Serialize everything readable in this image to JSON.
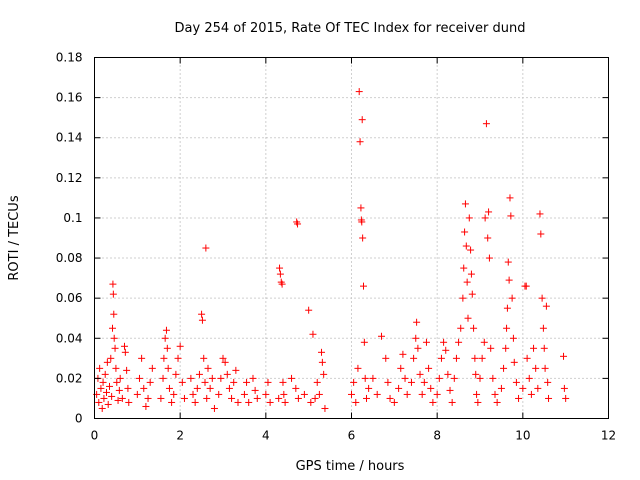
{
  "chart_data": {
    "type": "scatter",
    "title": "Day 254 of 2015, Rate Of TEC Index for receiver dund",
    "xlabel": "GPS time / hours",
    "ylabel": "ROTI / TECUs",
    "xlim": [
      0,
      12
    ],
    "ylim": [
      0,
      0.18
    ],
    "xticks": [
      0,
      2,
      4,
      6,
      8,
      10,
      12
    ],
    "xtick_labels": [
      "0",
      "2",
      "4",
      "6",
      "8",
      "10",
      "12"
    ],
    "yticks": [
      0,
      0.02,
      0.04,
      0.06,
      0.08,
      0.1,
      0.12,
      0.14,
      0.16,
      0.18
    ],
    "ytick_labels": [
      "0",
      "0.02",
      "0.04",
      "0.06",
      "0.08",
      "0.1",
      "0.12",
      "0.14",
      "0.16",
      "0.18"
    ],
    "grid": true,
    "marker": "+",
    "marker_color": "#ff0000",
    "series": [
      {
        "name": "ROTI",
        "points": [
          [
            0.05,
            0.012
          ],
          [
            0.08,
            0.02
          ],
          [
            0.1,
            0.008
          ],
          [
            0.12,
            0.025
          ],
          [
            0.15,
            0.015
          ],
          [
            0.18,
            0.005
          ],
          [
            0.2,
            0.018
          ],
          [
            0.22,
            0.01
          ],
          [
            0.25,
            0.022
          ],
          [
            0.28,
            0.013
          ],
          [
            0.3,
            0.028
          ],
          [
            0.32,
            0.007
          ],
          [
            0.35,
            0.016
          ],
          [
            0.38,
            0.03
          ],
          [
            0.4,
            0.011
          ],
          [
            0.42,
            0.045
          ],
          [
            0.43,
            0.067
          ],
          [
            0.44,
            0.062
          ],
          [
            0.45,
            0.052
          ],
          [
            0.46,
            0.04
          ],
          [
            0.48,
            0.035
          ],
          [
            0.5,
            0.025
          ],
          [
            0.52,
            0.018
          ],
          [
            0.55,
            0.009
          ],
          [
            0.58,
            0.014
          ],
          [
            0.6,
            0.02
          ],
          [
            0.65,
            0.01
          ],
          [
            0.7,
            0.036
          ],
          [
            0.72,
            0.033
          ],
          [
            0.75,
            0.024
          ],
          [
            0.78,
            0.015
          ],
          [
            0.8,
            0.008
          ],
          [
            1.0,
            0.012
          ],
          [
            1.05,
            0.02
          ],
          [
            1.1,
            0.03
          ],
          [
            1.15,
            0.015
          ],
          [
            1.2,
            0.006
          ],
          [
            1.25,
            0.01
          ],
          [
            1.3,
            0.018
          ],
          [
            1.35,
            0.025
          ],
          [
            1.55,
            0.01
          ],
          [
            1.6,
            0.02
          ],
          [
            1.62,
            0.03
          ],
          [
            1.65,
            0.04
          ],
          [
            1.68,
            0.044
          ],
          [
            1.7,
            0.035
          ],
          [
            1.72,
            0.025
          ],
          [
            1.75,
            0.015
          ],
          [
            1.8,
            0.008
          ],
          [
            1.85,
            0.012
          ],
          [
            1.9,
            0.022
          ],
          [
            1.95,
            0.03
          ],
          [
            2.0,
            0.036
          ],
          [
            2.05,
            0.018
          ],
          [
            2.1,
            0.01
          ],
          [
            2.25,
            0.02
          ],
          [
            2.3,
            0.012
          ],
          [
            2.35,
            0.008
          ],
          [
            2.4,
            0.015
          ],
          [
            2.45,
            0.022
          ],
          [
            2.5,
            0.052
          ],
          [
            2.52,
            0.049
          ],
          [
            2.55,
            0.03
          ],
          [
            2.58,
            0.018
          ],
          [
            2.6,
            0.085
          ],
          [
            2.62,
            0.01
          ],
          [
            2.65,
            0.025
          ],
          [
            2.7,
            0.015
          ],
          [
            2.75,
            0.02
          ],
          [
            2.8,
            0.005
          ],
          [
            2.9,
            0.012
          ],
          [
            2.95,
            0.02
          ],
          [
            3.0,
            0.03
          ],
          [
            3.05,
            0.028
          ],
          [
            3.1,
            0.022
          ],
          [
            3.15,
            0.015
          ],
          [
            3.2,
            0.01
          ],
          [
            3.25,
            0.018
          ],
          [
            3.3,
            0.024
          ],
          [
            3.35,
            0.008
          ],
          [
            3.5,
            0.012
          ],
          [
            3.55,
            0.018
          ],
          [
            3.6,
            0.008
          ],
          [
            3.7,
            0.02
          ],
          [
            3.75,
            0.014
          ],
          [
            3.8,
            0.01
          ],
          [
            4.0,
            0.012
          ],
          [
            4.05,
            0.018
          ],
          [
            4.1,
            0.008
          ],
          [
            4.3,
            0.01
          ],
          [
            4.32,
            0.075
          ],
          [
            4.34,
            0.072
          ],
          [
            4.36,
            0.068
          ],
          [
            4.38,
            0.067
          ],
          [
            4.4,
            0.018
          ],
          [
            4.42,
            0.012
          ],
          [
            4.45,
            0.008
          ],
          [
            4.6,
            0.02
          ],
          [
            4.7,
            0.015
          ],
          [
            4.72,
            0.098
          ],
          [
            4.74,
            0.097
          ],
          [
            4.76,
            0.01
          ],
          [
            4.9,
            0.012
          ],
          [
            5.0,
            0.054
          ],
          [
            5.05,
            0.008
          ],
          [
            5.1,
            0.042
          ],
          [
            5.15,
            0.01
          ],
          [
            5.2,
            0.018
          ],
          [
            5.25,
            0.012
          ],
          [
            5.3,
            0.033
          ],
          [
            5.32,
            0.028
          ],
          [
            5.35,
            0.022
          ],
          [
            5.38,
            0.005
          ],
          [
            6.0,
            0.012
          ],
          [
            6.05,
            0.018
          ],
          [
            6.1,
            0.008
          ],
          [
            6.15,
            0.025
          ],
          [
            6.18,
            0.163
          ],
          [
            6.2,
            0.138
          ],
          [
            6.22,
            0.105
          ],
          [
            6.23,
            0.099
          ],
          [
            6.24,
            0.098
          ],
          [
            6.25,
            0.149
          ],
          [
            6.26,
            0.09
          ],
          [
            6.28,
            0.066
          ],
          [
            6.3,
            0.038
          ],
          [
            6.32,
            0.02
          ],
          [
            6.35,
            0.01
          ],
          [
            6.4,
            0.015
          ],
          [
            6.5,
            0.02
          ],
          [
            6.6,
            0.012
          ],
          [
            6.7,
            0.041
          ],
          [
            6.8,
            0.03
          ],
          [
            6.85,
            0.018
          ],
          [
            6.9,
            0.01
          ],
          [
            7.0,
            0.008
          ],
          [
            7.1,
            0.015
          ],
          [
            7.15,
            0.025
          ],
          [
            7.2,
            0.032
          ],
          [
            7.25,
            0.02
          ],
          [
            7.3,
            0.012
          ],
          [
            7.4,
            0.018
          ],
          [
            7.45,
            0.03
          ],
          [
            7.5,
            0.04
          ],
          [
            7.52,
            0.048
          ],
          [
            7.55,
            0.035
          ],
          [
            7.6,
            0.022
          ],
          [
            7.65,
            0.012
          ],
          [
            7.7,
            0.018
          ],
          [
            7.75,
            0.038
          ],
          [
            7.8,
            0.025
          ],
          [
            7.85,
            0.015
          ],
          [
            7.9,
            0.008
          ],
          [
            8.0,
            0.012
          ],
          [
            8.05,
            0.02
          ],
          [
            8.1,
            0.03
          ],
          [
            8.15,
            0.038
          ],
          [
            8.2,
            0.034
          ],
          [
            8.25,
            0.022
          ],
          [
            8.3,
            0.014
          ],
          [
            8.35,
            0.008
          ],
          [
            8.4,
            0.02
          ],
          [
            8.45,
            0.03
          ],
          [
            8.5,
            0.038
          ],
          [
            8.55,
            0.045
          ],
          [
            8.6,
            0.06
          ],
          [
            8.62,
            0.075
          ],
          [
            8.64,
            0.093
          ],
          [
            8.66,
            0.107
          ],
          [
            8.68,
            0.086
          ],
          [
            8.7,
            0.068
          ],
          [
            8.72,
            0.05
          ],
          [
            8.75,
            0.1
          ],
          [
            8.78,
            0.084
          ],
          [
            8.8,
            0.072
          ],
          [
            8.82,
            0.062
          ],
          [
            8.85,
            0.045
          ],
          [
            8.88,
            0.03
          ],
          [
            8.9,
            0.022
          ],
          [
            8.92,
            0.012
          ],
          [
            8.95,
            0.008
          ],
          [
            9.0,
            0.02
          ],
          [
            9.05,
            0.03
          ],
          [
            9.1,
            0.038
          ],
          [
            9.12,
            0.1
          ],
          [
            9.15,
            0.147
          ],
          [
            9.18,
            0.09
          ],
          [
            9.2,
            0.103
          ],
          [
            9.22,
            0.08
          ],
          [
            9.25,
            0.035
          ],
          [
            9.3,
            0.02
          ],
          [
            9.35,
            0.012
          ],
          [
            9.4,
            0.008
          ],
          [
            9.5,
            0.015
          ],
          [
            9.55,
            0.025
          ],
          [
            9.6,
            0.035
          ],
          [
            9.62,
            0.045
          ],
          [
            9.64,
            0.055
          ],
          [
            9.66,
            0.078
          ],
          [
            9.68,
            0.069
          ],
          [
            9.7,
            0.11
          ],
          [
            9.72,
            0.101
          ],
          [
            9.75,
            0.06
          ],
          [
            9.78,
            0.04
          ],
          [
            9.8,
            0.028
          ],
          [
            9.85,
            0.018
          ],
          [
            9.9,
            0.01
          ],
          [
            10.0,
            0.015
          ],
          [
            10.05,
            0.066
          ],
          [
            10.08,
            0.066
          ],
          [
            10.1,
            0.03
          ],
          [
            10.15,
            0.02
          ],
          [
            10.2,
            0.012
          ],
          [
            10.25,
            0.035
          ],
          [
            10.3,
            0.025
          ],
          [
            10.35,
            0.015
          ],
          [
            10.4,
            0.102
          ],
          [
            10.42,
            0.092
          ],
          [
            10.45,
            0.06
          ],
          [
            10.48,
            0.045
          ],
          [
            10.5,
            0.035
          ],
          [
            10.52,
            0.025
          ],
          [
            10.55,
            0.056
          ],
          [
            10.58,
            0.018
          ],
          [
            10.6,
            0.01
          ],
          [
            10.95,
            0.031
          ],
          [
            10.97,
            0.015
          ],
          [
            11.0,
            0.01
          ]
        ]
      }
    ]
  }
}
